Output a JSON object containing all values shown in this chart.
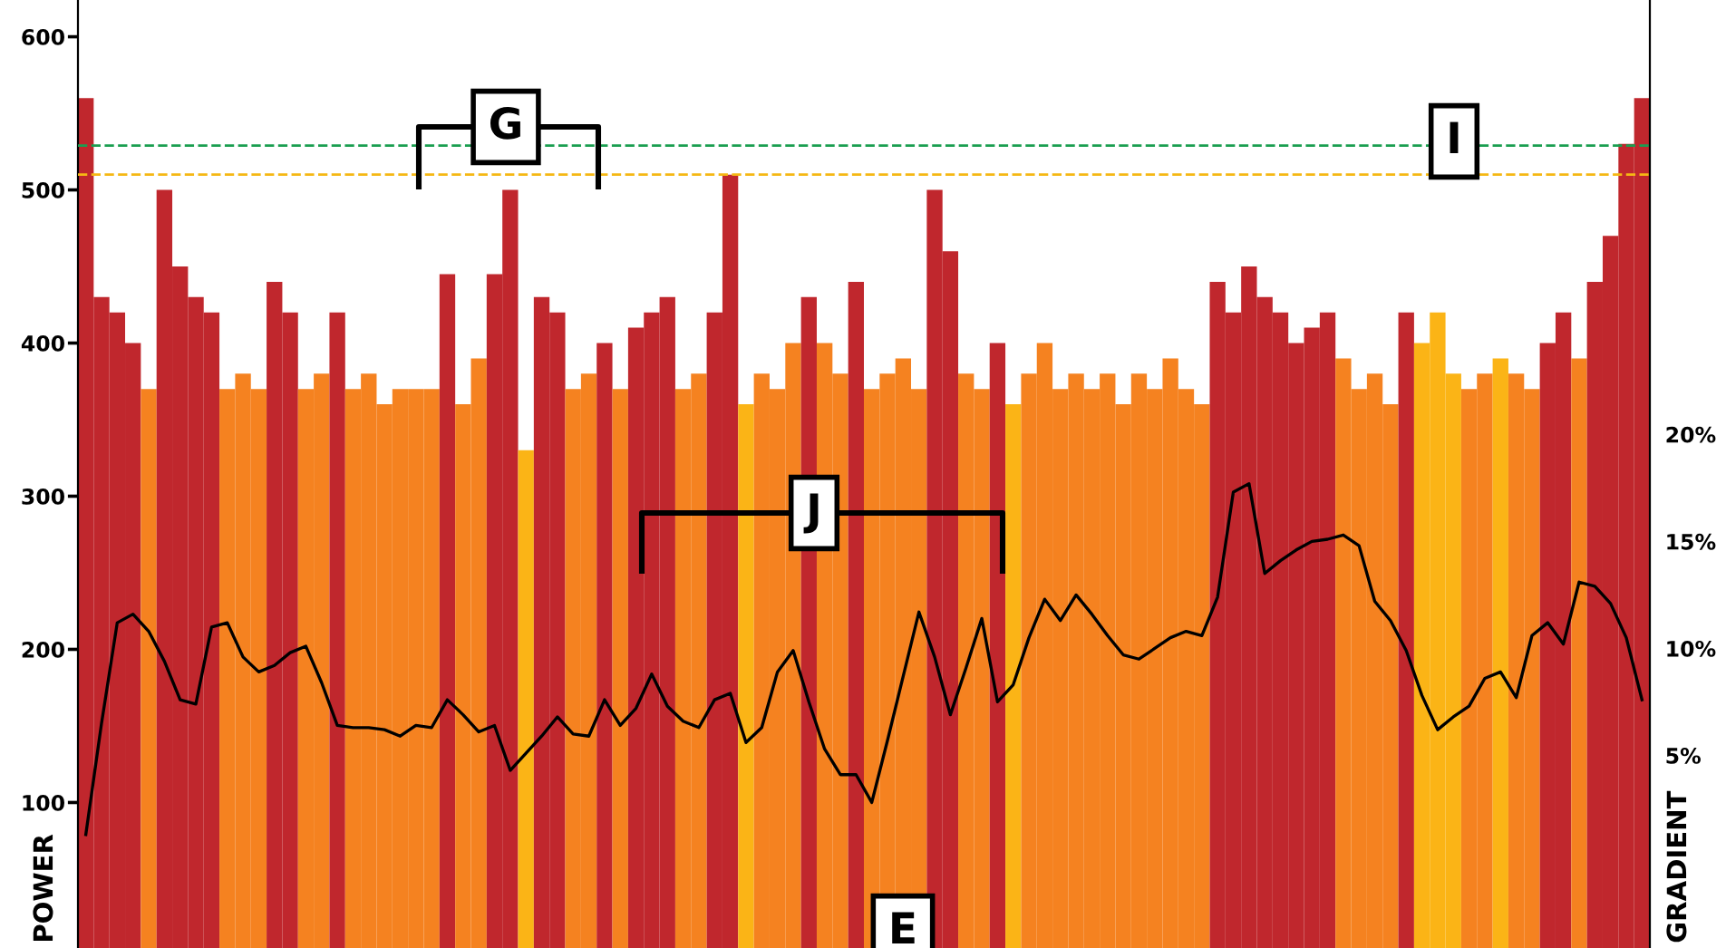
{
  "chart_data": {
    "type": "bar",
    "xlabel": null,
    "ylabel": "POWER",
    "y2label": "GRADIENT",
    "categories": [
      null,
      null,
      null,
      null,
      null,
      null,
      null,
      null,
      null,
      null,
      null,
      null,
      null,
      null,
      null,
      null,
      null,
      null,
      null,
      null,
      null,
      null,
      null,
      null,
      null,
      null,
      null,
      null,
      null,
      null,
      null,
      null,
      null,
      null,
      null,
      null,
      null,
      null,
      null,
      null,
      null,
      null,
      null,
      null,
      null,
      null,
      null,
      null,
      null,
      null,
      null,
      null,
      null,
      null,
      null,
      null,
      null,
      null,
      null,
      null,
      null,
      null,
      null,
      null,
      null,
      null,
      null,
      null,
      null,
      null,
      null,
      null,
      null,
      null,
      null,
      null,
      null,
      null,
      null,
      null,
      null,
      null,
      null,
      null,
      null,
      null,
      null,
      null,
      null,
      null,
      null,
      null,
      null,
      null,
      null,
      null,
      null,
      null,
      null,
      null
    ],
    "series": [
      {
        "values": [
          560,
          430,
          420,
          400,
          370,
          500,
          450,
          430,
          420,
          370,
          380,
          370,
          440,
          420,
          370,
          380,
          420,
          370,
          380,
          360,
          370,
          370,
          370,
          445,
          360,
          390,
          445,
          500,
          330,
          430,
          420,
          370,
          380,
          400,
          370,
          410,
          420,
          430,
          370,
          380,
          420,
          510,
          360,
          380,
          370,
          400,
          430,
          400,
          380,
          440,
          370,
          380,
          390,
          370,
          500,
          460,
          380,
          370,
          400,
          360,
          380,
          400,
          370,
          380,
          370,
          380,
          360,
          380,
          370,
          390,
          370,
          360,
          440,
          420,
          450,
          430,
          420,
          400,
          410,
          420,
          390,
          370,
          380,
          360,
          420,
          400,
          420,
          380,
          370,
          380,
          390,
          380,
          370,
          400,
          420,
          390,
          440,
          470,
          530,
          560
        ],
        "colors": [
          "#c0272d",
          "#c0272d",
          "#c0272d",
          "#c0272d",
          "#f58220",
          "#c0272d",
          "#c0272d",
          "#c0272d",
          "#c0272d",
          "#f58220",
          "#f58220",
          "#f58220",
          "#c0272d",
          "#c0272d",
          "#f58220",
          "#f58220",
          "#c0272d",
          "#f58220",
          "#f58220",
          "#f58220",
          "#f58220",
          "#f58220",
          "#f58220",
          "#c0272d",
          "#f58220",
          "#f58220",
          "#c0272d",
          "#c0272d",
          "#fbb416",
          "#c0272d",
          "#c0272d",
          "#f58220",
          "#f58220",
          "#c0272d",
          "#f58220",
          "#c0272d",
          "#c0272d",
          "#c0272d",
          "#f58220",
          "#f58220",
          "#c0272d",
          "#c0272d",
          "#fbb416",
          "#f58220",
          "#f58220",
          "#f58220",
          "#c0272d",
          "#f58220",
          "#f58220",
          "#c0272d",
          "#f58220",
          "#f58220",
          "#f58220",
          "#f58220",
          "#c0272d",
          "#c0272d",
          "#f58220",
          "#f58220",
          "#c0272d",
          "#fbb416",
          "#f58220",
          "#f58220",
          "#f58220",
          "#f58220",
          "#f58220",
          "#f58220",
          "#f58220",
          "#f58220",
          "#f58220",
          "#f58220",
          "#f58220",
          "#f58220",
          "#c0272d",
          "#c0272d",
          "#c0272d",
          "#c0272d",
          "#c0272d",
          "#c0272d",
          "#c0272d",
          "#c0272d",
          "#f58220",
          "#f58220",
          "#f58220",
          "#f58220",
          "#c0272d",
          "#fbb416",
          "#fbb416",
          "#fbb416",
          "#f58220",
          "#f58220",
          "#fbb416",
          "#f58220",
          "#f58220",
          "#c0272d",
          "#c0272d",
          "#f58220",
          "#c0272d",
          "#c0272d",
          "#c0272d",
          "#c0272d"
        ]
      },
      {
        "type": "line",
        "axis": "y2",
        "color": "#000000",
        "values": [
          1.3,
          6.5,
          11.2,
          11.6,
          10.8,
          9.4,
          7.6,
          7.4,
          11.0,
          11.2,
          9.6,
          8.9,
          9.2,
          9.8,
          10.1,
          8.4,
          6.4,
          6.3,
          6.3,
          6.2,
          5.9,
          6.4,
          6.3,
          7.6,
          6.9,
          6.1,
          6.4,
          4.3,
          5.1,
          5.9,
          6.8,
          6.0,
          5.9,
          7.6,
          6.4,
          7.2,
          8.8,
          7.3,
          6.6,
          6.3,
          7.6,
          7.9,
          5.6,
          6.3,
          8.9,
          9.9,
          7.5,
          5.3,
          4.1,
          4.1,
          2.8,
          5.7,
          8.7,
          11.7,
          9.6,
          6.9,
          9.1,
          11.4,
          7.5,
          8.3,
          10.5,
          12.3,
          11.3,
          12.5,
          11.6,
          10.6,
          9.7,
          9.5,
          10.0,
          10.5,
          10.8,
          10.6,
          12.4,
          17.3,
          17.7,
          13.5,
          14.1,
          14.6,
          15.0,
          15.1,
          15.3,
          14.8,
          12.2,
          11.3,
          9.9,
          7.8,
          6.2,
          6.8,
          7.3,
          8.6,
          8.9,
          7.7,
          10.6,
          11.2,
          10.2,
          13.1,
          12.9,
          12.1,
          10.5,
          7.6
        ]
      }
    ],
    "ylim": [
      5,
      624
    ],
    "yticks": [
      100,
      200,
      300,
      400,
      500,
      600
    ],
    "y2lim": [
      -4,
      40.3
    ],
    "y2ticks": [
      {
        "value": 5,
        "label": "5%"
      },
      {
        "value": 10,
        "label": "10%"
      },
      {
        "value": 15,
        "label": "15%"
      },
      {
        "value": 20,
        "label": "20%"
      }
    ],
    "ref_lines": [
      {
        "axis": "y",
        "value": 529,
        "color": "#1a9e50",
        "line_style": "dashed"
      },
      {
        "axis": "y",
        "value": 510,
        "color": "#f5b814",
        "line_style": "dashed"
      }
    ],
    "annotations": [
      "G",
      "I",
      "J",
      "E"
    ],
    "grid": false
  }
}
